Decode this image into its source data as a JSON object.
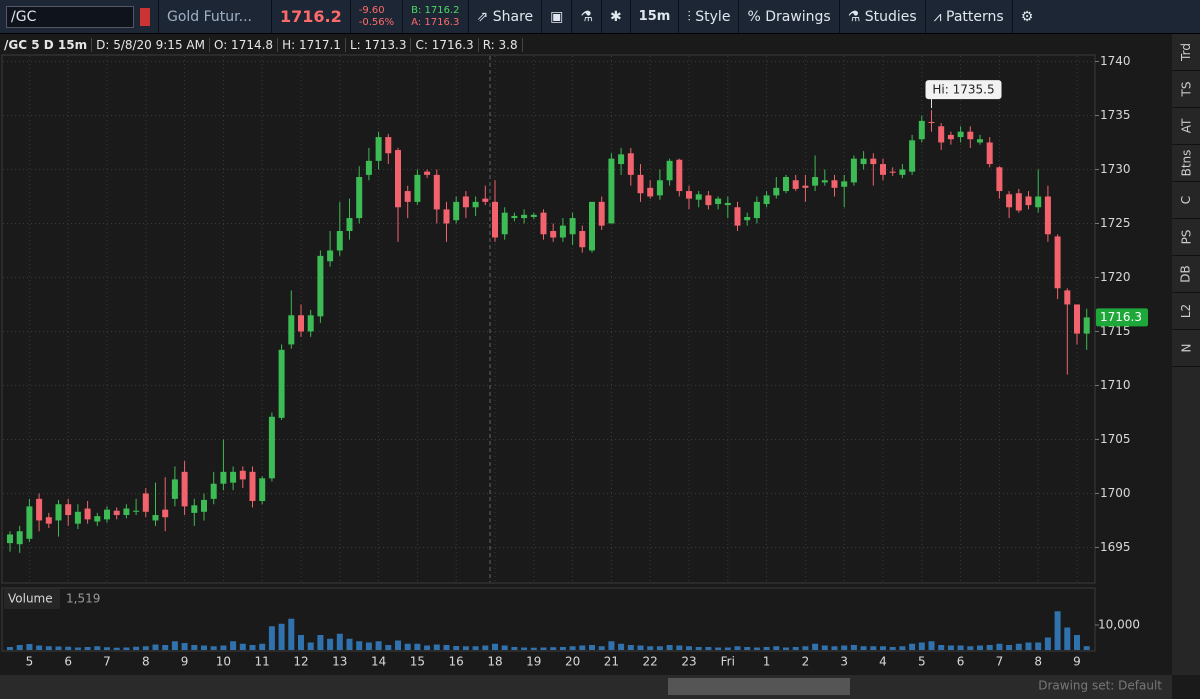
{
  "toolbar": {
    "symbol": "/GC",
    "description": "Gold Futur...",
    "last": "1716.2",
    "change": "-9.60",
    "change_pct": "-0.56%",
    "bid": "B: 1716.2",
    "ask": "A: 1716.3",
    "share": "Share",
    "interval": "15m",
    "style": "Style",
    "drawings": "Drawings",
    "studies": "Studies",
    "patterns": "Patterns"
  },
  "header": {
    "title": "/GC 5 D 15m",
    "date": "D: 5/8/20 9:15 AM",
    "open": "O: 1714.8",
    "high": "H: 1717.1",
    "low": "L: 1713.3",
    "close": "C: 1716.3",
    "range": "R: 3.8"
  },
  "side_tabs": [
    "Trd",
    "TS",
    "AT",
    "Btns",
    "C",
    "PS",
    "DB",
    "L2",
    "N"
  ],
  "footer": {
    "drawing_set": "Drawing set: Default"
  },
  "chart_data": {
    "type": "candlestick",
    "categories": [
      null,
      null,
      "5",
      null,
      null,
      null,
      "6",
      null,
      null,
      null,
      "7",
      null,
      null,
      null,
      "8",
      null,
      null,
      null,
      "9",
      null,
      null,
      null,
      "10",
      null,
      null,
      null,
      "11",
      null,
      null,
      null,
      "12",
      null,
      null,
      null,
      "13",
      null,
      null,
      null,
      "14",
      null,
      null,
      null,
      "15",
      null,
      null,
      null,
      "16",
      null,
      null,
      null,
      "18",
      null,
      null,
      null,
      "19",
      null,
      null,
      null,
      "20",
      null,
      null,
      null,
      "21",
      null,
      null,
      null,
      "22",
      null,
      null,
      null,
      "23",
      null,
      null,
      null,
      "Fri",
      null,
      null,
      null,
      "1",
      null,
      null,
      null,
      "2",
      null,
      null,
      null,
      "3",
      null,
      null,
      null,
      "4",
      null,
      null,
      null,
      "5",
      null,
      null,
      null,
      "6",
      null,
      null,
      null,
      "7",
      null,
      null,
      null,
      "8",
      null,
      null,
      null,
      "9",
      null
    ],
    "open": [
      1695.4,
      1695.3,
      1695.8,
      1699.5,
      1697.8,
      1697.5,
      1699,
      1697.2,
      1698.6,
      1697.4,
      1697.6,
      1698.4,
      1698,
      1698.3,
      1700,
      1697.5,
      1698.5,
      1699.5,
      1702,
      1698.2,
      1698.3,
      1699.5,
      1700.9,
      1701,
      1702.1,
      1702,
      1699.3,
      1701.4,
      1707,
      1713.8,
      1716.5,
      1715,
      1716.4,
      1721.5,
      1722.5,
      1724.3,
      1725.5,
      1729.5,
      1730.8,
      1733,
      1731.8,
      1728,
      1727,
      1729.8,
      1729.5,
      1726.3,
      1725.3,
      1727.5,
      1726.5,
      1727.3,
      1727,
      1724,
      1725.5,
      1725.5,
      1725.6,
      1726,
      1724.3,
      1723.7,
      1724,
      1724.3,
      1722.5,
      1727,
      1725,
      1730.5,
      1731.5,
      1729.5,
      1728.3,
      1727.6,
      1729,
      1730.9,
      1728,
      1727.2,
      1727.6,
      1726.8,
      1726.7,
      1726.5,
      1725.3,
      1725.5,
      1726.8,
      1727.6,
      1728,
      1729,
      1728.5,
      1728.5,
      1728.8,
      1729,
      1728.4,
      1728.8,
      1730.5,
      1731,
      1730.5,
      1729.8,
      1729.5,
      1729.8,
      1732.8,
      1734.4,
      1734,
      1733.2,
      1733,
      1733.5,
      1732.5,
      1732.5,
      1730.2,
      1727.7,
      1727.8,
      1727.5,
      1726.5,
      1727.5,
      1723.8,
      1718.8,
      1717.5,
      1714.8
    ],
    "high": [
      1696.5,
      1697,
      1699.5,
      1700,
      1698.2,
      1699.4,
      1699.5,
      1699,
      1699.3,
      1698.2,
      1698.8,
      1698.7,
      1699,
      1699.5,
      1700.5,
      1701,
      1701.5,
      1702.5,
      1703,
      1699.5,
      1700,
      1702,
      1705,
      1702.5,
      1702.5,
      1702.5,
      1701.6,
      1707.5,
      1713.8,
      1718.8,
      1717.5,
      1717,
      1722.5,
      1724.3,
      1727,
      1727.3,
      1730.3,
      1732,
      1733.5,
      1733.3,
      1732,
      1728.5,
      1730,
      1730,
      1730,
      1727,
      1727.5,
      1728,
      1727.5,
      1728.5,
      1729,
      1726.5,
      1726,
      1726.3,
      1726,
      1726.3,
      1725,
      1725.5,
      1726,
      1724.8,
      1727,
      1727.5,
      1731.5,
      1732,
      1732,
      1730.5,
      1729,
      1730,
      1731,
      1731,
      1728.5,
      1728,
      1728,
      1727.5,
      1727.5,
      1727,
      1726,
      1727.5,
      1728,
      1729.3,
      1729.5,
      1729.5,
      1729.5,
      1731.3,
      1730,
      1729.5,
      1729.5,
      1731.3,
      1731.7,
      1731.5,
      1731,
      1730.2,
      1730.5,
      1733.2,
      1735,
      1735.5,
      1734.3,
      1733.5,
      1734,
      1734,
      1733.2,
      1733,
      1730.3,
      1728,
      1728.2,
      1728,
      1730,
      1728.5,
      1724,
      1719,
      1717.5,
      1717.1
    ],
    "low": [
      1694.6,
      1694.5,
      1695.5,
      1696.5,
      1696.8,
      1696,
      1697,
      1696.7,
      1697.2,
      1697,
      1697.3,
      1697.6,
      1697.7,
      1698,
      1697.8,
      1697,
      1696.5,
      1698.8,
      1698,
      1697,
      1697.5,
      1699,
      1700.3,
      1700.3,
      1700.5,
      1698.7,
      1699,
      1701.1,
      1706.8,
      1713.4,
      1714.5,
      1714.5,
      1715.8,
      1721,
      1722,
      1723.5,
      1725,
      1729,
      1730,
      1730.5,
      1723.3,
      1725.5,
      1726.7,
      1729.2,
      1725,
      1723.3,
      1725,
      1725.5,
      1725.7,
      1726.7,
      1723.3,
      1723.5,
      1725.2,
      1725,
      1725.4,
      1723.5,
      1723.3,
      1723.3,
      1723,
      1722.3,
      1722.3,
      1724.4,
      1725,
      1729.5,
      1728.5,
      1727,
      1727.3,
      1727.2,
      1728.5,
      1727.5,
      1726.3,
      1726.5,
      1726.3,
      1726.3,
      1725.5,
      1724.3,
      1724.8,
      1725,
      1726.5,
      1727.3,
      1727.8,
      1728,
      1727,
      1728,
      1728.5,
      1727.5,
      1726.5,
      1728.5,
      1730,
      1728.5,
      1729,
      1729.4,
      1729.2,
      1729.5,
      1732.5,
      1733.5,
      1731.8,
      1732.3,
      1732.5,
      1732,
      1732.3,
      1730.2,
      1727.3,
      1725.5,
      1726,
      1726.3,
      1726,
      1723.3,
      1718,
      1711,
      1713.8,
      1713.3
    ],
    "close": [
      1696.2,
      1696.5,
      1698.8,
      1697.5,
      1697.2,
      1699,
      1698,
      1698.3,
      1697.6,
      1697.9,
      1698.5,
      1698,
      1698.6,
      1698.4,
      1698.3,
      1698,
      1697.8,
      1701.3,
      1698.8,
      1698.9,
      1699.4,
      1700.9,
      1702,
      1702,
      1701.3,
      1699.3,
      1701.4,
      1707.1,
      1713.3,
      1716.5,
      1715,
      1716.5,
      1722,
      1722.5,
      1724.3,
      1725.5,
      1729.3,
      1730.8,
      1733,
      1731.5,
      1726.5,
      1727,
      1729.5,
      1729.5,
      1726.3,
      1725,
      1727,
      1726.5,
      1727,
      1727,
      1723.7,
      1726,
      1725.7,
      1725.8,
      1725.8,
      1724,
      1723.7,
      1724.8,
      1725.5,
      1722.8,
      1727,
      1724.8,
      1731,
      1731.4,
      1729.5,
      1727.8,
      1727.5,
      1729,
      1730.8,
      1728,
      1727.3,
      1727.7,
      1726.7,
      1727.3,
      1726.9,
      1724.8,
      1725.6,
      1727,
      1727.6,
      1728.3,
      1729.3,
      1728.2,
      1728.3,
      1729.3,
      1729,
      1728.3,
      1728.9,
      1731,
      1731,
      1730.5,
      1729.5,
      1729.7,
      1730,
      1732.7,
      1734.5,
      1734.3,
      1732.5,
      1732.8,
      1733.5,
      1732.8,
      1732.8,
      1730.5,
      1728,
      1726.5,
      1726.2,
      1726.7,
      1727.5,
      1724,
      1719,
      1717.5,
      1714.8,
      1716.3
    ],
    "volume": [
      1200,
      2000,
      2400,
      1800,
      1500,
      1400,
      1300,
      1000,
      1200,
      1500,
      1100,
      900,
      1000,
      1300,
      1500,
      2200,
      2000,
      3500,
      2800,
      2000,
      1800,
      1500,
      1800,
      3500,
      2500,
      2000,
      2500,
      9500,
      10500,
      12500,
      6000,
      3000,
      6000,
      4500,
      6500,
      4500,
      3500,
      3000,
      3500,
      2000,
      3800,
      2500,
      2500,
      1800,
      2200,
      2000,
      1600,
      1500,
      1500,
      1800,
      2500,
      1800,
      1200,
      1000,
      900,
      1000,
      1100,
      1200,
      1500,
      1800,
      2000,
      1500,
      3500,
      2500,
      2000,
      1800,
      1500,
      1500,
      2000,
      1800,
      1500,
      1200,
      1200,
      1000,
      1000,
      1500,
      1200,
      1000,
      1200,
      1500,
      1000,
      1200,
      1500,
      2500,
      1800,
      1500,
      1800,
      2000,
      1500,
      1500,
      1500,
      1200,
      1500,
      2500,
      3000,
      3500,
      2000,
      1800,
      1800,
      1500,
      1800,
      2000,
      2500,
      2000,
      2500,
      3000,
      3000,
      5000,
      15500,
      9000,
      6000,
      1519
    ],
    "up_color": "#3dbb55",
    "down_color": "#f2636d",
    "volume_color": "#2f72ad",
    "ylim": [
      1691.8,
      1740.6
    ],
    "yticks": [
      1695,
      1700,
      1705,
      1710,
      1715,
      1720,
      1725,
      1730,
      1735,
      1740
    ],
    "volume_ylim": [
      0,
      16000
    ],
    "volume_yticks": [
      {
        "value": 10000,
        "label": "10,000"
      }
    ],
    "volume_title": "Volume",
    "volume_current": "1,519",
    "high_annotation": "Hi: 1735.5",
    "price_label": "1716.3",
    "grid": true
  }
}
